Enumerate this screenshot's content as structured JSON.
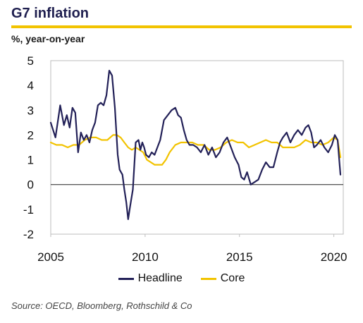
{
  "chart_data": {
    "type": "line",
    "title": "G7 inflation",
    "ylabel": "%, year-on-year",
    "xlabel": "",
    "source": "Source: OECD, Bloomberg, Rothschild & Co",
    "xlim": [
      2005,
      2020.5
    ],
    "ylim": [
      -2,
      5
    ],
    "x_ticks": [
      "2005",
      "2010",
      "2015",
      "2020"
    ],
    "y_ticks": [
      "5",
      "4",
      "3",
      "2",
      "1",
      "0",
      "-1",
      "-2"
    ],
    "legend_position": "bottom",
    "series": [
      {
        "name": "Headline",
        "color": "#232158",
        "x": [
          2005.0,
          2005.25,
          2005.5,
          2005.7,
          2005.85,
          2006.0,
          2006.15,
          2006.3,
          2006.45,
          2006.6,
          2006.75,
          2006.9,
          2007.05,
          2007.2,
          2007.35,
          2007.5,
          2007.65,
          2007.8,
          2007.95,
          2008.1,
          2008.25,
          2008.4,
          2008.55,
          2008.65,
          2008.8,
          2008.9,
          2009.0,
          2009.1,
          2009.2,
          2009.35,
          2009.5,
          2009.65,
          2009.75,
          2009.85,
          2009.95,
          2010.05,
          2010.2,
          2010.35,
          2010.5,
          2010.65,
          2010.8,
          2011.0,
          2011.2,
          2011.4,
          2011.6,
          2011.75,
          2011.9,
          2012.05,
          2012.2,
          2012.35,
          2012.55,
          2012.75,
          2012.95,
          2013.15,
          2013.35,
          2013.55,
          2013.75,
          2013.95,
          2014.15,
          2014.35,
          2014.55,
          2014.75,
          2014.95,
          2015.1,
          2015.25,
          2015.4,
          2015.6,
          2015.8,
          2016.0,
          2016.2,
          2016.4,
          2016.6,
          2016.8,
          2017.0,
          2017.15,
          2017.3,
          2017.5,
          2017.7,
          2017.9,
          2018.1,
          2018.3,
          2018.5,
          2018.65,
          2018.8,
          2018.95,
          2019.1,
          2019.3,
          2019.5,
          2019.7,
          2019.9,
          2020.05,
          2020.2,
          2020.35
        ],
        "values": [
          2.5,
          1.9,
          3.2,
          2.4,
          2.8,
          2.3,
          3.1,
          2.9,
          1.3,
          2.1,
          1.8,
          2.0,
          1.7,
          2.2,
          2.5,
          3.2,
          3.3,
          3.2,
          3.6,
          4.6,
          4.4,
          3.1,
          1.2,
          0.6,
          0.4,
          -0.2,
          -0.7,
          -1.4,
          -0.9,
          -0.2,
          1.7,
          1.8,
          1.4,
          1.7,
          1.5,
          1.2,
          1.1,
          1.3,
          1.2,
          1.5,
          1.8,
          2.6,
          2.8,
          3.0,
          3.1,
          2.8,
          2.7,
          2.2,
          1.8,
          1.6,
          1.6,
          1.5,
          1.3,
          1.6,
          1.2,
          1.5,
          1.1,
          1.3,
          1.7,
          1.9,
          1.5,
          1.1,
          0.8,
          0.3,
          0.2,
          0.5,
          0.0,
          0.1,
          0.2,
          0.6,
          0.9,
          0.7,
          0.7,
          1.3,
          1.7,
          1.9,
          2.1,
          1.7,
          2.0,
          2.2,
          2.0,
          2.3,
          2.4,
          2.1,
          1.5,
          1.6,
          1.8,
          1.5,
          1.3,
          1.6,
          2.0,
          1.8,
          0.4
        ]
      },
      {
        "name": "Core",
        "color": "#f2c300",
        "x": [
          2005.0,
          2005.3,
          2005.6,
          2005.9,
          2006.2,
          2006.5,
          2006.8,
          2007.1,
          2007.4,
          2007.7,
          2008.0,
          2008.3,
          2008.5,
          2008.7,
          2008.9,
          2009.1,
          2009.3,
          2009.5,
          2009.7,
          2009.9,
          2010.1,
          2010.3,
          2010.5,
          2010.7,
          2010.9,
          2011.1,
          2011.3,
          2011.6,
          2011.9,
          2012.2,
          2012.5,
          2012.8,
          2013.1,
          2013.4,
          2013.7,
          2014.0,
          2014.3,
          2014.6,
          2014.9,
          2015.2,
          2015.5,
          2015.8,
          2016.1,
          2016.4,
          2016.7,
          2017.0,
          2017.3,
          2017.6,
          2017.9,
          2018.2,
          2018.5,
          2018.8,
          2019.1,
          2019.4,
          2019.7,
          2020.0,
          2020.2,
          2020.35
        ],
        "values": [
          1.7,
          1.6,
          1.6,
          1.5,
          1.6,
          1.6,
          1.8,
          1.9,
          1.9,
          1.8,
          1.8,
          2.0,
          2.0,
          1.9,
          1.7,
          1.5,
          1.4,
          1.5,
          1.4,
          1.3,
          1.0,
          0.9,
          0.8,
          0.8,
          0.8,
          1.0,
          1.3,
          1.6,
          1.7,
          1.7,
          1.7,
          1.6,
          1.6,
          1.4,
          1.4,
          1.5,
          1.7,
          1.8,
          1.7,
          1.7,
          1.5,
          1.6,
          1.7,
          1.8,
          1.7,
          1.7,
          1.5,
          1.5,
          1.5,
          1.6,
          1.8,
          1.7,
          1.7,
          1.6,
          1.7,
          1.9,
          1.8,
          1.1
        ]
      }
    ]
  }
}
